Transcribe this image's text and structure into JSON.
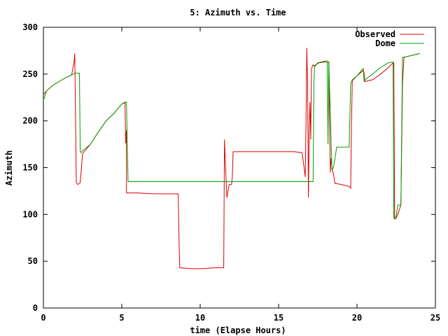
{
  "chart_data": {
    "type": "line",
    "title": "5: Azimuth vs. Time",
    "xlabel": "time (Elapse Hours)",
    "ylabel": "Azimuth",
    "xlim": [
      0,
      25
    ],
    "ylim": [
      0,
      300
    ],
    "xticks": [
      0,
      5,
      10,
      15,
      20,
      25
    ],
    "yticks": [
      0,
      50,
      100,
      150,
      200,
      250,
      300
    ],
    "grid": false,
    "legend_position": "top-right",
    "series": [
      {
        "name": "Observed",
        "color": "#e00000",
        "x": [
          0.0,
          0.2,
          0.6,
          1.0,
          1.4,
          1.8,
          1.95,
          2.0,
          2.05,
          2.1,
          2.2,
          2.35,
          2.5,
          3.0,
          3.5,
          4.0,
          4.5,
          5.0,
          5.2,
          5.25,
          5.3,
          5.3,
          6.0,
          7.0,
          8.0,
          8.6,
          8.65,
          8.7,
          9.5,
          10.0,
          11.0,
          11.5,
          11.55,
          11.6,
          11.7,
          11.85,
          12.0,
          12.05,
          12.1,
          12.2,
          13.0,
          14.0,
          15.0,
          16.0,
          16.5,
          16.7,
          16.75,
          16.8,
          16.85,
          16.9,
          16.95,
          17.0,
          17.05,
          17.1,
          17.2,
          17.3,
          17.5,
          18.0,
          18.2,
          18.3,
          18.35,
          18.4,
          18.5,
          18.6,
          18.7,
          19.0,
          19.5,
          19.6,
          19.65,
          19.7,
          20.0,
          20.4,
          20.45,
          20.5,
          21.0,
          21.5,
          22.0,
          22.3,
          22.35,
          22.4,
          22.5,
          22.6,
          22.8,
          22.9,
          23.0,
          23.5,
          24.0
        ],
        "y": [
          228,
          232,
          238,
          242,
          246,
          249,
          262,
          272,
          205,
          134,
          132,
          134,
          165,
          175,
          188,
          200,
          208,
          218,
          220,
          176,
          190,
          123,
          123,
          122,
          122,
          122,
          70,
          43,
          42,
          42,
          43,
          43,
          180,
          158,
          118,
          132,
          132,
          140,
          167,
          167,
          167,
          167,
          167,
          167,
          166,
          140,
          200,
          278,
          240,
          118,
          190,
          220,
          180,
          256,
          260,
          258,
          262,
          264,
          262,
          145,
          160,
          150,
          143,
          133,
          133,
          132,
          130,
          128,
          200,
          243,
          248,
          254,
          252,
          242,
          244,
          250,
          257,
          262,
          262,
          95,
          96,
          100,
          110,
          240,
          268,
          270,
          272
        ]
      },
      {
        "name": "Dome",
        "color": "#00a000",
        "x": [
          0.0,
          0.2,
          0.6,
          1.0,
          1.4,
          1.8,
          2.0,
          2.3,
          2.35,
          2.4,
          2.5,
          3.0,
          3.5,
          4.0,
          4.5,
          5.0,
          5.3,
          5.35,
          5.4,
          5.5,
          6.0,
          8.0,
          10.0,
          12.0,
          14.0,
          16.0,
          17.0,
          17.2,
          17.25,
          17.3,
          17.35,
          17.6,
          18.0,
          18.1,
          18.15,
          18.2,
          18.4,
          18.5,
          18.6,
          18.7,
          19.0,
          19.5,
          19.6,
          19.7,
          20.0,
          20.3,
          20.4,
          20.45,
          20.5,
          21.0,
          21.5,
          22.0,
          22.3,
          22.35,
          22.4,
          22.5,
          22.6,
          22.8,
          22.9,
          23.0,
          23.5,
          24.0
        ],
        "y": [
          222,
          232,
          238,
          242,
          246,
          249,
          251,
          251,
          168,
          166,
          168,
          175,
          188,
          200,
          208,
          218,
          220,
          175,
          135,
          135,
          135,
          135,
          135,
          135,
          135,
          135,
          135,
          135,
          240,
          259,
          260,
          262,
          263,
          264,
          175,
          264,
          148,
          150,
          160,
          172,
          172,
          172,
          240,
          244,
          248,
          254,
          256,
          242,
          244,
          250,
          257,
          262,
          263,
          96,
          96,
          98,
          110,
          110,
          268,
          268,
          270,
          272
        ]
      }
    ]
  }
}
